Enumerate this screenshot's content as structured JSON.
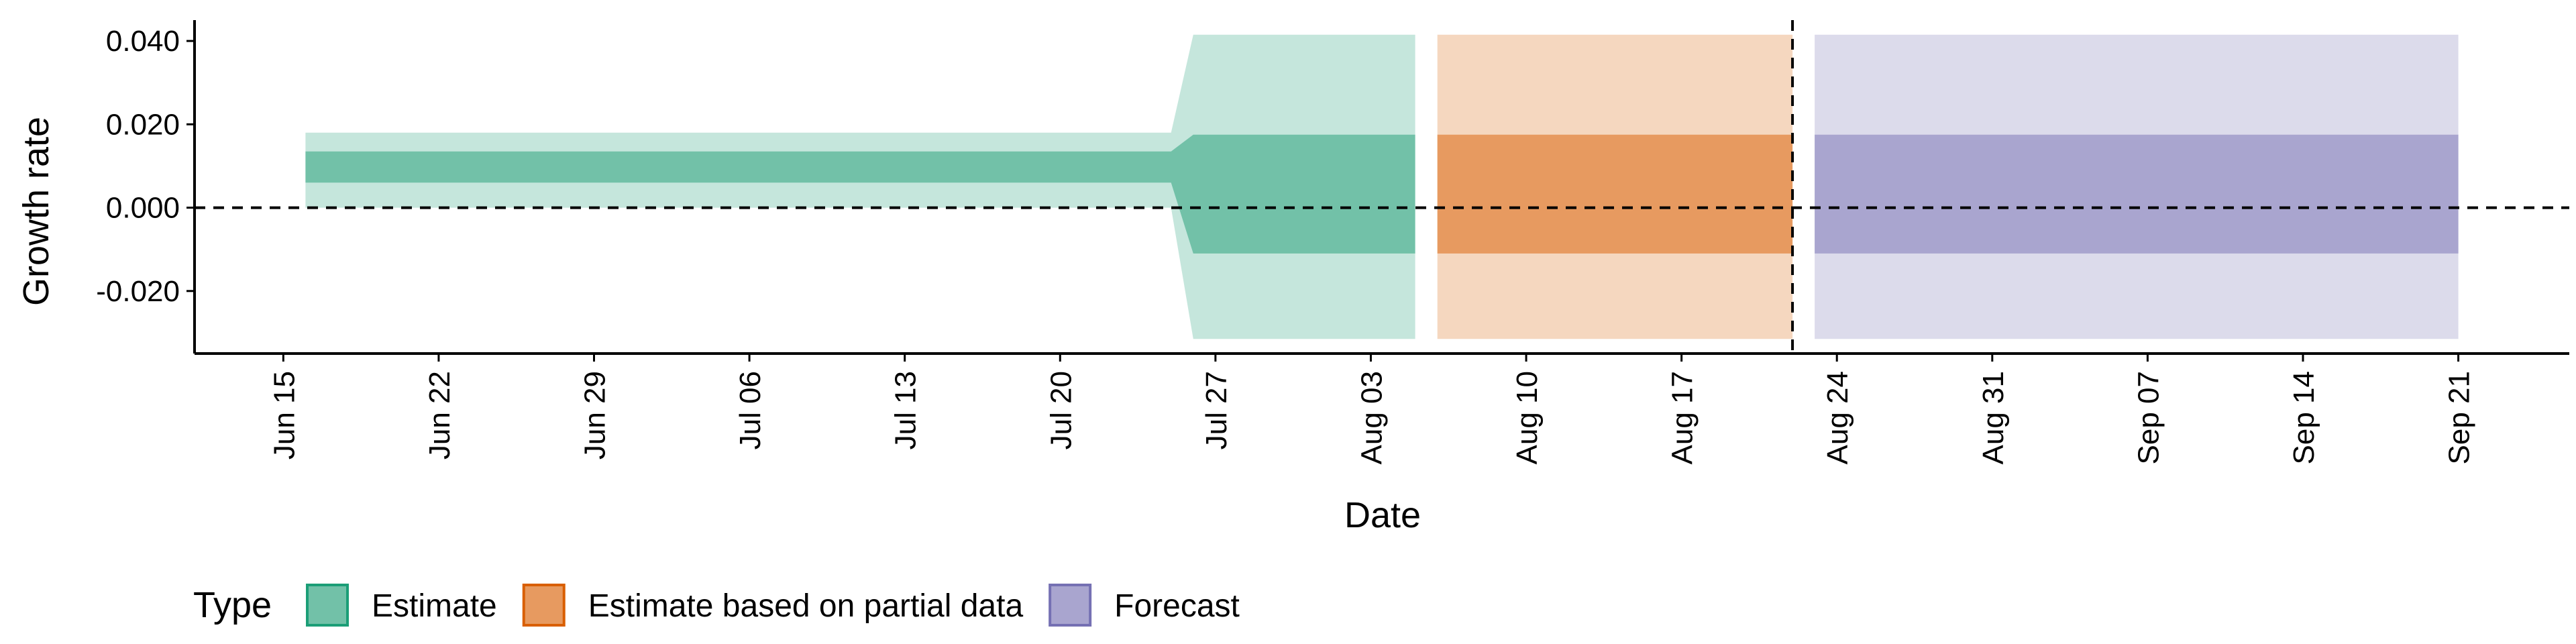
{
  "chart_data": {
    "type": "area",
    "xlabel": "Date",
    "ylabel": "Growth rate",
    "x_range": [
      "2020-06-11",
      "2020-09-26"
    ],
    "ylim": [
      -0.035,
      0.045
    ],
    "x_ticks": [
      {
        "date": "2020-06-15",
        "label": "Jun 15"
      },
      {
        "date": "2020-06-22",
        "label": "Jun 22"
      },
      {
        "date": "2020-06-29",
        "label": "Jun 29"
      },
      {
        "date": "2020-07-06",
        "label": "Jul 06"
      },
      {
        "date": "2020-07-13",
        "label": "Jul 13"
      },
      {
        "date": "2020-07-20",
        "label": "Jul 20"
      },
      {
        "date": "2020-07-27",
        "label": "Jul 27"
      },
      {
        "date": "2020-08-03",
        "label": "Aug 03"
      },
      {
        "date": "2020-08-10",
        "label": "Aug 10"
      },
      {
        "date": "2020-08-17",
        "label": "Aug 17"
      },
      {
        "date": "2020-08-24",
        "label": "Aug 24"
      },
      {
        "date": "2020-08-31",
        "label": "Aug 31"
      },
      {
        "date": "2020-09-07",
        "label": "Sep 07"
      },
      {
        "date": "2020-09-14",
        "label": "Sep 14"
      },
      {
        "date": "2020-09-21",
        "label": "Sep 21"
      }
    ],
    "y_ticks": [
      {
        "value": 0.04,
        "label": "0.040"
      },
      {
        "value": 0.02,
        "label": "0.020"
      },
      {
        "value": 0.0,
        "label": "0.000"
      },
      {
        "value": -0.02,
        "label": "-0.020"
      }
    ],
    "hline": 0.0,
    "vline_date": "2020-08-22",
    "grid": false,
    "legend": {
      "title": "Type",
      "position": "bottom",
      "entries": [
        {
          "label": "Estimate",
          "fill": "#72c1a8",
          "stroke": "#1b9e77"
        },
        {
          "label": "Estimate based on partial data",
          "fill": "#e79a60",
          "stroke": "#d95f02"
        },
        {
          "label": "Forecast",
          "fill": "#a9a5cf",
          "stroke": "#7570b3"
        }
      ]
    },
    "series": [
      {
        "name": "Estimate",
        "color": "#1b9e77",
        "outer_color": "#c5e6dc",
        "inner_color": "#72c1a8",
        "points": [
          {
            "date": "2020-06-16",
            "lower_90": 0.0,
            "upper_90": 0.018,
            "lower_50": 0.006,
            "upper_50": 0.0135
          },
          {
            "date": "2020-07-25",
            "lower_90": 0.0,
            "upper_90": 0.018,
            "lower_50": 0.006,
            "upper_50": 0.0135
          },
          {
            "date": "2020-07-26",
            "lower_90": -0.0315,
            "upper_90": 0.0415,
            "lower_50": -0.011,
            "upper_50": 0.0175
          },
          {
            "date": "2020-08-05",
            "lower_90": -0.0315,
            "upper_90": 0.0415,
            "lower_50": -0.011,
            "upper_50": 0.0175
          }
        ]
      },
      {
        "name": "Estimate based on partial data",
        "color": "#d95f02",
        "outer_color": "#f5d7bf",
        "inner_color": "#e79a60",
        "points": [
          {
            "date": "2020-08-06",
            "lower_90": -0.0315,
            "upper_90": 0.0415,
            "lower_50": -0.011,
            "upper_50": 0.0175
          },
          {
            "date": "2020-08-22",
            "lower_90": -0.0315,
            "upper_90": 0.0415,
            "lower_50": -0.011,
            "upper_50": 0.0175
          }
        ]
      },
      {
        "name": "Forecast",
        "color": "#7570b3",
        "outer_color": "#dcdbeb",
        "inner_color": "#a9a5cf",
        "points": [
          {
            "date": "2020-08-23",
            "lower_90": -0.0315,
            "upper_90": 0.0415,
            "lower_50": -0.011,
            "upper_50": 0.0175
          },
          {
            "date": "2020-09-21",
            "lower_90": -0.0315,
            "upper_90": 0.0415,
            "lower_50": -0.011,
            "upper_50": 0.0175
          }
        ]
      }
    ]
  }
}
